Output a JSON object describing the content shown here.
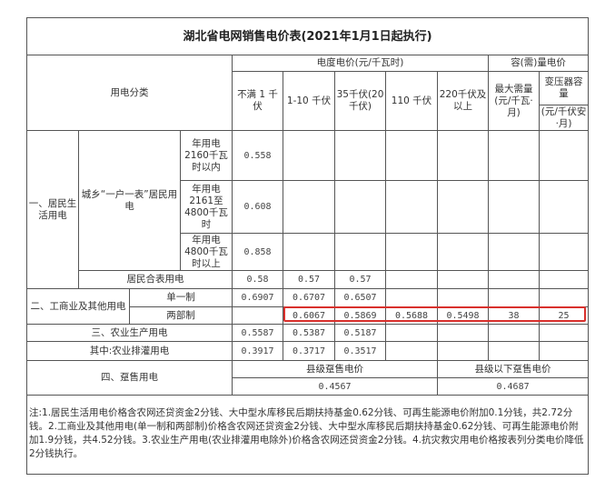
{
  "title": "湖北省电网销售电价表(2021年1月1日起执行)",
  "header": {
    "category": "用电分类",
    "energy_price": "电度电价(元/千瓦时)",
    "capacity_price": "容(需)量电价",
    "voltages": [
      "不满 1 千伏",
      "1-10 千伏",
      "35千伏(20千伏)",
      "110 千伏",
      "220千伏及以上"
    ],
    "max_demand": "最大需量(元/千瓦·月)",
    "transformer": "变压器容量",
    "transformer_unit": "(元/千伏安·月)"
  },
  "residential": {
    "label": "一、居民生活用电",
    "sub": "城乡“一户一表”居民用电",
    "tiers": [
      {
        "label": "年用电2160千瓦时以内",
        "value": "0.558"
      },
      {
        "label": "年用电2161至4800千瓦时",
        "value": "0.608"
      },
      {
        "label": "年用电4800千瓦时以上",
        "value": "0.858"
      }
    ],
    "combined": {
      "label": "居民合表用电",
      "values": [
        "0.58",
        "0.57",
        "0.57"
      ]
    }
  },
  "commercial": {
    "label": "二、工商业及其他用电",
    "single": {
      "label": "单一制",
      "values": [
        "0.6907",
        "0.6707",
        "0.6507"
      ]
    },
    "two_part": {
      "label": "两部制",
      "values": [
        "0.6067",
        "0.5869",
        "0.5688",
        "0.5498",
        "38",
        "25"
      ]
    }
  },
  "agriculture": {
    "label": "三、农业生产用电",
    "values": [
      "0.5587",
      "0.5387",
      "0.5187"
    ]
  },
  "irrigation": {
    "label": "其中:农业排灌用电",
    "values": [
      "0.3917",
      "0.3717",
      "0.3517"
    ]
  },
  "wholesale": {
    "label": "四、趸售用电",
    "county_label": "县级趸售电价",
    "county_value": "0.4567",
    "below_label": "县级以下趸售电价",
    "below_value": "0.4687"
  },
  "note": "注:1.居民生活用电价格含农网还贷资金2分钱、大中型水库移民后期扶持基金0.62分钱、可再生能源电价附加0.1分钱，共2.72分钱。2.工商业及其他用电(单一制和两部制)价格含农网还贷资金2分钱、大中型水库移民后期扶持基金0.62分钱、可再生能源电价附加1.9分钱，共4.52分钱。3.农业生产用电(农业排灌用电除外)价格含农网还贷资金2分钱。4.抗灾救灾用电价格按表列分类电价降低2分钱执行。",
  "highlight_color": "#d9302c"
}
